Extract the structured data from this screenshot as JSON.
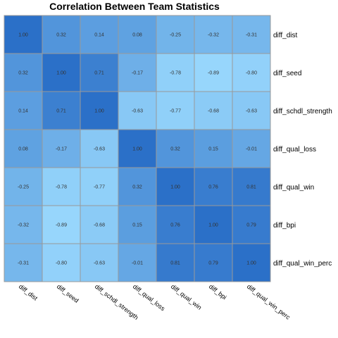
{
  "chart_data": {
    "type": "heatmap",
    "title": "Correlation Between Team Statistics",
    "xlabel": "",
    "ylabel": "",
    "labels": [
      "diff_dist",
      "diff_seed",
      "diff_schdl_strength",
      "diff_qual_loss",
      "diff_qual_win",
      "diff_bpi",
      "diff_qual_win_perc"
    ],
    "value_labels": [
      [
        "1.00",
        "0.32",
        "0.14",
        "0.08",
        "-0.25",
        "-0.32",
        "-0.31"
      ],
      [
        "0.32",
        "1.00",
        "0.71",
        "-0.17",
        "-0.78",
        "-0.89",
        "-0.80"
      ],
      [
        "0.14",
        "0.71",
        "1.00",
        "-0.63",
        "-0.77",
        "-0.68",
        "-0.63"
      ],
      [
        "0.08",
        "-0.17",
        "-0.63",
        "1.00",
        "0.32",
        "0.15",
        "-0.01"
      ],
      [
        "-0.25",
        "-0.78",
        "-0.77",
        "0.32",
        "1.00",
        "0.76",
        "0.81"
      ],
      [
        "-0.32",
        "-0.89",
        "-0.68",
        "0.15",
        "0.76",
        "1.00",
        "0.79"
      ],
      [
        "-0.31",
        "-0.80",
        "-0.63",
        "-0.01",
        "0.81",
        "0.79",
        "1.00"
      ]
    ],
    "colors": {
      "low": "#9ddcff",
      "high": "#2b70c8",
      "grid": "#999999"
    }
  }
}
